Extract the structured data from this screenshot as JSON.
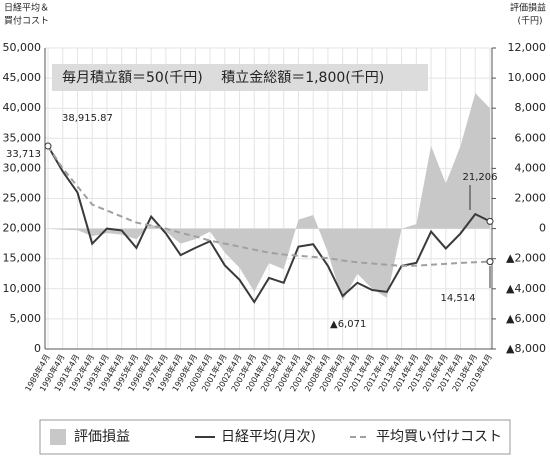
{
  "chart_data": {
    "type": "line",
    "title": "毎月積立額＝50(千円)　 積立金総額＝1,800(千円)",
    "y_label": [
      "日経平均＆",
      "買付コスト"
    ],
    "y2_label": [
      "評価損益",
      "(千円)"
    ],
    "categories": [
      "1989年4月",
      "1990年4月",
      "1991年4月",
      "1992年4月",
      "1993年4月",
      "1994年4月",
      "1995年4月",
      "1996年4月",
      "1997年4月",
      "1998年4月",
      "1999年4月",
      "2000年4月",
      "2001年4月",
      "2002年4月",
      "2003年4月",
      "2004年4月",
      "2005年4月",
      "2006年4月",
      "2007年4月",
      "2008年4月",
      "2009年4月",
      "2010年4月",
      "2011年4月",
      "2012年4月",
      "2013年4月",
      "2014年4月",
      "2015年4月",
      "2016年4月",
      "2017年4月",
      "2018年4月",
      "2019年4月"
    ],
    "series": [
      {
        "name": "評価損益",
        "type": "area",
        "axis": "y2",
        "color": "#c8c8c8",
        "values": [
          0,
          -80,
          -100,
          -500,
          -300,
          -400,
          -700,
          300,
          -200,
          -1000,
          -700,
          -200,
          -1600,
          -2600,
          -4200,
          -2300,
          -2700,
          600,
          900,
          -1600,
          -4800,
          -3000,
          -4000,
          -4600,
          0,
          300,
          5500,
          3000,
          5500,
          9000,
          8000
        ]
      },
      {
        "name": "日経平均(月次)",
        "type": "line",
        "color": "#3a3a3a",
        "values": [
          33713,
          29500,
          26000,
          17500,
          20000,
          19700,
          16800,
          22000,
          19200,
          15600,
          16800,
          17900,
          13900,
          11500,
          7800,
          11800,
          11000,
          17000,
          17400,
          13800,
          8800,
          11000,
          9800,
          9500,
          13800,
          14300,
          19500,
          16700,
          19200,
          22400,
          21206
        ]
      },
      {
        "name": "平均買い付けコスト",
        "type": "line",
        "dashed": true,
        "color": "#a0a0a0",
        "values": [
          33713,
          30000,
          27000,
          24000,
          23000,
          22000,
          21000,
          20500,
          20000,
          19300,
          18700,
          18000,
          17500,
          17000,
          16500,
          16000,
          15700,
          15500,
          15300,
          15100,
          14700,
          14400,
          14200,
          14000,
          13800,
          13850,
          14000,
          14150,
          14300,
          14420,
          14514
        ]
      }
    ],
    "annotations": [
      "38,915.87",
      "33,713",
      "▲6,071",
      "21,206",
      "14,514"
    ],
    "ylim": [
      0,
      50000
    ],
    "yticks": [
      0,
      {
        "value": 5000,
        "label": "5,000"
      },
      {
        "value": 10000,
        "label": "10,000"
      },
      {
        "value": 15000,
        "label": "15,000"
      },
      {
        "value": 20000,
        "label": "20,000"
      },
      {
        "value": 25000,
        "label": "25,000"
      },
      {
        "value": 30000,
        "label": "30,000"
      },
      {
        "value": 35000,
        "label": "35,000"
      },
      {
        "value": 40000,
        "label": "40,000"
      },
      {
        "value": 45000,
        "label": "45,000"
      },
      {
        "value": 50000,
        "label": "50,000"
      }
    ],
    "y2lim": [
      -8000,
      12000
    ],
    "y2ticks": [
      {
        "value": -8000,
        "label": "▲8,000"
      },
      {
        "value": -6000,
        "label": "▲6,000"
      },
      {
        "value": -4000,
        "label": "▲4,000"
      },
      {
        "value": -2000,
        "label": "▲2,000"
      },
      0,
      {
        "value": 2000,
        "label": "2,000"
      },
      {
        "value": 4000,
        "label": "4,000"
      },
      {
        "value": 6000,
        "label": "6,000"
      },
      {
        "value": 8000,
        "label": "8,000"
      },
      {
        "value": 10000,
        "label": "10,000"
      },
      {
        "value": 12000,
        "label": "12,000"
      }
    ],
    "grid": true
  }
}
